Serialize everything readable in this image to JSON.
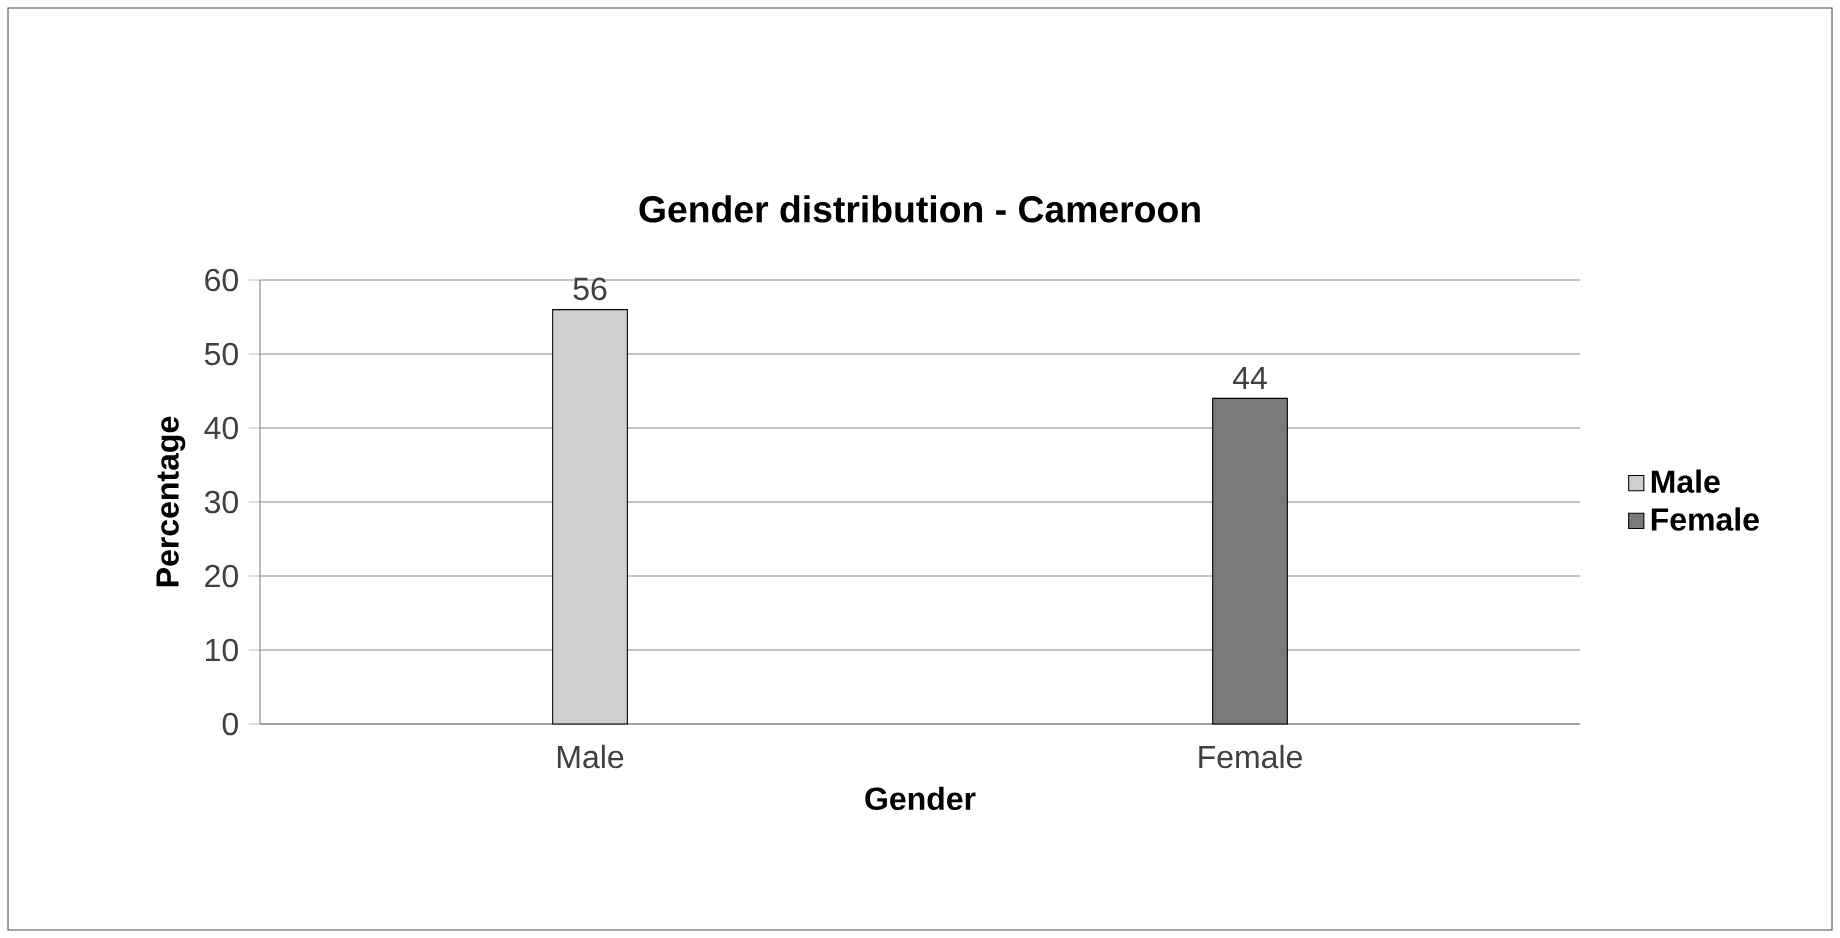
{
  "chart_data": {
    "type": "bar",
    "title": "Gender distribution - Cameroon",
    "xlabel": "Gender",
    "ylabel": "Percentage",
    "categories": [
      "Male",
      "Female"
    ],
    "series": [
      {
        "name": "Male",
        "color": "#cfcfcf",
        "values": [
          56,
          null
        ]
      },
      {
        "name": "Female",
        "color": "#7a7a7a",
        "values": [
          null,
          44
        ]
      }
    ],
    "ylim": [
      0,
      60
    ],
    "yticks": [
      0,
      10,
      20,
      30,
      40,
      50,
      60
    ],
    "grid": "y",
    "legend": "right",
    "data_labels": true
  }
}
